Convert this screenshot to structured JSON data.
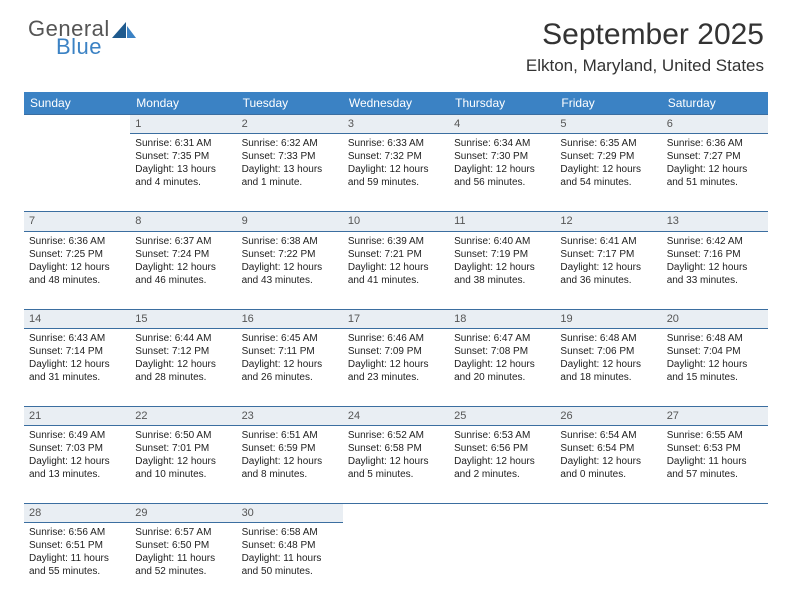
{
  "logo": {
    "text1": "General",
    "text2": "Blue"
  },
  "title": "September 2025",
  "location": "Elkton, Maryland, United States",
  "colors": {
    "header_bg": "#3b82c4",
    "header_text": "#ffffff",
    "daynum_bg": "#e9eef3",
    "border": "#3b6ea0",
    "body_bg": "#ffffff",
    "text": "#222222",
    "logo_accent": "#3b82c4"
  },
  "days_of_week": [
    "Sunday",
    "Monday",
    "Tuesday",
    "Wednesday",
    "Thursday",
    "Friday",
    "Saturday"
  ],
  "weeks": [
    [
      null,
      {
        "n": "1",
        "sr": "6:31 AM",
        "ss": "7:35 PM",
        "dl": "13 hours and 4 minutes."
      },
      {
        "n": "2",
        "sr": "6:32 AM",
        "ss": "7:33 PM",
        "dl": "13 hours and 1 minute."
      },
      {
        "n": "3",
        "sr": "6:33 AM",
        "ss": "7:32 PM",
        "dl": "12 hours and 59 minutes."
      },
      {
        "n": "4",
        "sr": "6:34 AM",
        "ss": "7:30 PM",
        "dl": "12 hours and 56 minutes."
      },
      {
        "n": "5",
        "sr": "6:35 AM",
        "ss": "7:29 PM",
        "dl": "12 hours and 54 minutes."
      },
      {
        "n": "6",
        "sr": "6:36 AM",
        "ss": "7:27 PM",
        "dl": "12 hours and 51 minutes."
      }
    ],
    [
      {
        "n": "7",
        "sr": "6:36 AM",
        "ss": "7:25 PM",
        "dl": "12 hours and 48 minutes."
      },
      {
        "n": "8",
        "sr": "6:37 AM",
        "ss": "7:24 PM",
        "dl": "12 hours and 46 minutes."
      },
      {
        "n": "9",
        "sr": "6:38 AM",
        "ss": "7:22 PM",
        "dl": "12 hours and 43 minutes."
      },
      {
        "n": "10",
        "sr": "6:39 AM",
        "ss": "7:21 PM",
        "dl": "12 hours and 41 minutes."
      },
      {
        "n": "11",
        "sr": "6:40 AM",
        "ss": "7:19 PM",
        "dl": "12 hours and 38 minutes."
      },
      {
        "n": "12",
        "sr": "6:41 AM",
        "ss": "7:17 PM",
        "dl": "12 hours and 36 minutes."
      },
      {
        "n": "13",
        "sr": "6:42 AM",
        "ss": "7:16 PM",
        "dl": "12 hours and 33 minutes."
      }
    ],
    [
      {
        "n": "14",
        "sr": "6:43 AM",
        "ss": "7:14 PM",
        "dl": "12 hours and 31 minutes."
      },
      {
        "n": "15",
        "sr": "6:44 AM",
        "ss": "7:12 PM",
        "dl": "12 hours and 28 minutes."
      },
      {
        "n": "16",
        "sr": "6:45 AM",
        "ss": "7:11 PM",
        "dl": "12 hours and 26 minutes."
      },
      {
        "n": "17",
        "sr": "6:46 AM",
        "ss": "7:09 PM",
        "dl": "12 hours and 23 minutes."
      },
      {
        "n": "18",
        "sr": "6:47 AM",
        "ss": "7:08 PM",
        "dl": "12 hours and 20 minutes."
      },
      {
        "n": "19",
        "sr": "6:48 AM",
        "ss": "7:06 PM",
        "dl": "12 hours and 18 minutes."
      },
      {
        "n": "20",
        "sr": "6:48 AM",
        "ss": "7:04 PM",
        "dl": "12 hours and 15 minutes."
      }
    ],
    [
      {
        "n": "21",
        "sr": "6:49 AM",
        "ss": "7:03 PM",
        "dl": "12 hours and 13 minutes."
      },
      {
        "n": "22",
        "sr": "6:50 AM",
        "ss": "7:01 PM",
        "dl": "12 hours and 10 minutes."
      },
      {
        "n": "23",
        "sr": "6:51 AM",
        "ss": "6:59 PM",
        "dl": "12 hours and 8 minutes."
      },
      {
        "n": "24",
        "sr": "6:52 AM",
        "ss": "6:58 PM",
        "dl": "12 hours and 5 minutes."
      },
      {
        "n": "25",
        "sr": "6:53 AM",
        "ss": "6:56 PM",
        "dl": "12 hours and 2 minutes."
      },
      {
        "n": "26",
        "sr": "6:54 AM",
        "ss": "6:54 PM",
        "dl": "12 hours and 0 minutes."
      },
      {
        "n": "27",
        "sr": "6:55 AM",
        "ss": "6:53 PM",
        "dl": "11 hours and 57 minutes."
      }
    ],
    [
      {
        "n": "28",
        "sr": "6:56 AM",
        "ss": "6:51 PM",
        "dl": "11 hours and 55 minutes."
      },
      {
        "n": "29",
        "sr": "6:57 AM",
        "ss": "6:50 PM",
        "dl": "11 hours and 52 minutes."
      },
      {
        "n": "30",
        "sr": "6:58 AM",
        "ss": "6:48 PM",
        "dl": "11 hours and 50 minutes."
      },
      null,
      null,
      null,
      null
    ]
  ],
  "labels": {
    "sunrise": "Sunrise:",
    "sunset": "Sunset:",
    "daylight": "Daylight:"
  }
}
